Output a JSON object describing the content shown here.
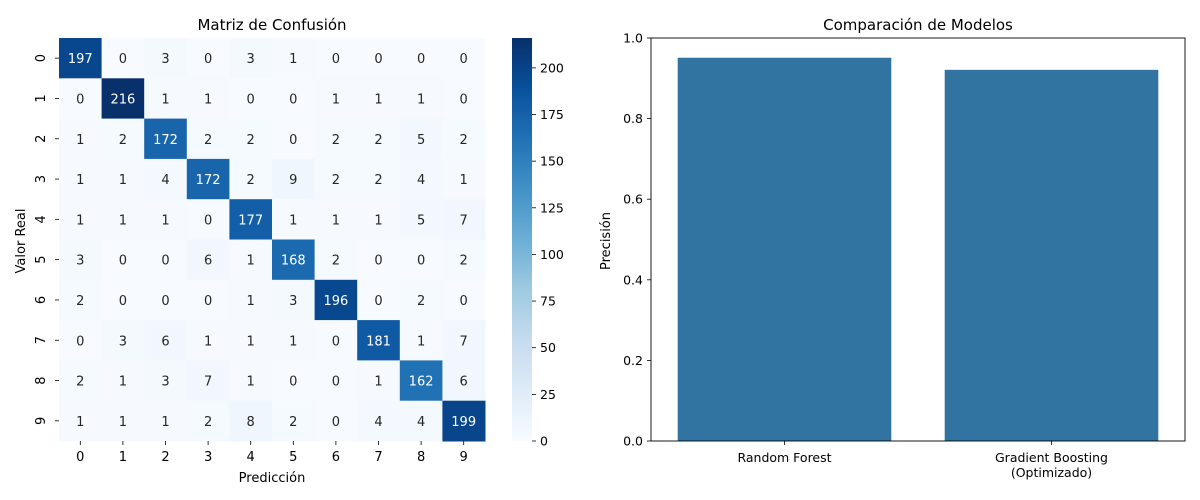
{
  "chart_data": [
    {
      "type": "heatmap",
      "title": "Matriz de Confusión",
      "xlabel": "Predicción",
      "ylabel": "Valor Real",
      "x_categories": [
        "0",
        "1",
        "2",
        "3",
        "4",
        "5",
        "6",
        "7",
        "8",
        "9"
      ],
      "y_categories": [
        "0",
        "1",
        "2",
        "3",
        "4",
        "5",
        "6",
        "7",
        "8",
        "9"
      ],
      "values": [
        [
          197,
          0,
          3,
          0,
          3,
          1,
          0,
          0,
          0,
          0
        ],
        [
          0,
          216,
          1,
          1,
          0,
          0,
          1,
          1,
          1,
          0
        ],
        [
          1,
          2,
          172,
          2,
          2,
          0,
          2,
          2,
          5,
          2
        ],
        [
          1,
          1,
          4,
          172,
          2,
          9,
          2,
          2,
          4,
          1
        ],
        [
          1,
          1,
          1,
          0,
          177,
          1,
          1,
          1,
          5,
          7
        ],
        [
          3,
          0,
          0,
          6,
          1,
          168,
          2,
          0,
          0,
          2
        ],
        [
          2,
          0,
          0,
          0,
          1,
          3,
          196,
          0,
          2,
          0
        ],
        [
          0,
          3,
          6,
          1,
          1,
          1,
          0,
          181,
          1,
          7
        ],
        [
          2,
          1,
          3,
          7,
          1,
          0,
          0,
          1,
          162,
          6
        ],
        [
          1,
          1,
          1,
          2,
          8,
          2,
          0,
          4,
          4,
          199
        ]
      ],
      "colormap": "Blues",
      "color_range": [
        0,
        216
      ],
      "colorbar_ticks": [
        "0",
        "25",
        "50",
        "75",
        "100",
        "125",
        "150",
        "175",
        "200"
      ]
    },
    {
      "type": "bar",
      "title": "Comparación de Modelos",
      "xlabel": "",
      "ylabel": "Precisión",
      "categories": [
        "Random Forest",
        "Gradient Boosting\n(Optimizado)"
      ],
      "values": [
        0.951,
        0.921
      ],
      "ylim": [
        0,
        1.0
      ],
      "yticks": [
        "0.0",
        "0.2",
        "0.4",
        "0.6",
        "0.8",
        "1.0"
      ],
      "bar_color": "#3274a1"
    }
  ]
}
